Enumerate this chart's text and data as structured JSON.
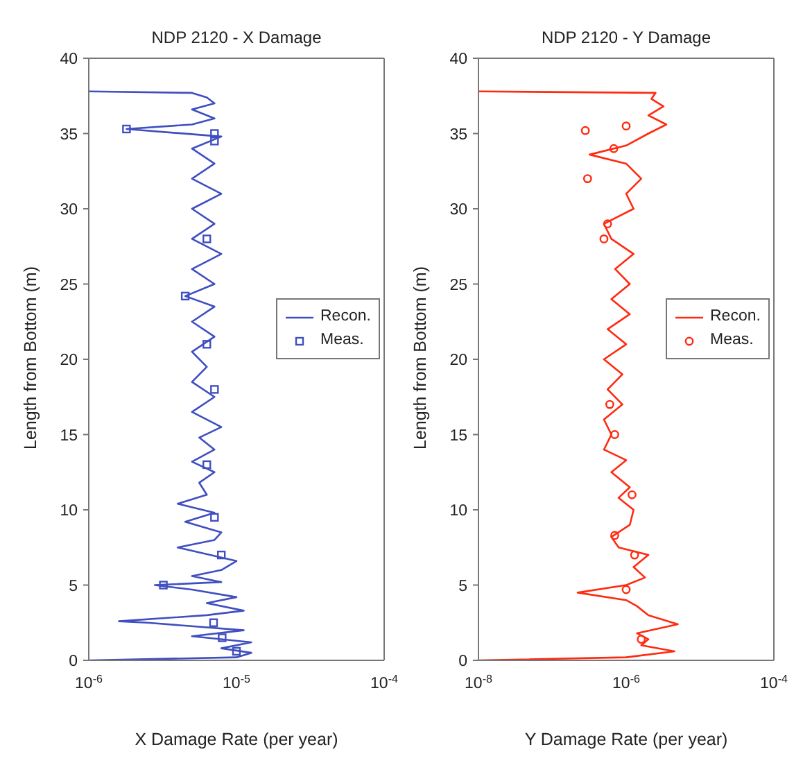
{
  "chart_data": [
    {
      "type": "line",
      "title": "NDP 2120 - X Damage",
      "xlabel": "X Damage Rate (per year)",
      "ylabel": "Length from Bottom (m)",
      "log": "x",
      "xlim": [
        1e-06,
        0.0001
      ],
      "xticks": [
        {
          "value": 1e-06,
          "label": "10$^{-6}$"
        },
        {
          "value": 1e-05,
          "label": "10$^{-5}$"
        },
        {
          "value": 0.0001,
          "label": "10$^{-4}$"
        }
      ],
      "ylim": [
        0,
        40
      ],
      "yticks": [
        0,
        5,
        10,
        15,
        20,
        25,
        30,
        35,
        40
      ],
      "legend": "right",
      "series": [
        {
          "name": "Recon.",
          "marker": "none",
          "color": "#3f4fc0",
          "x": [
            1e-06,
            1e-05,
            1.26e-05,
            7.9e-06,
            1.26e-05,
            5e-06,
            1.12e-05,
            2.5e-06,
            1.6e-06,
            6.3e-06,
            1.12e-05,
            6.3e-06,
            1e-05,
            5e-06,
            2.8e-06,
            7.9e-06,
            5e-06,
            7.9e-06,
            1e-05,
            4e-06,
            7.1e-06,
            7.9e-06,
            4.5e-06,
            7.1e-06,
            4e-06,
            6.3e-06,
            5.6e-06,
            7.1e-06,
            5e-06,
            7.1e-06,
            5.6e-06,
            7.9e-06,
            5e-06,
            7.1e-06,
            5e-06,
            6.3e-06,
            5e-06,
            7.1e-06,
            5e-06,
            7.1e-06,
            4.5e-06,
            7.1e-06,
            5e-06,
            7.9e-06,
            5e-06,
            7.1e-06,
            5e-06,
            7.9e-06,
            5e-06,
            7.1e-06,
            5e-06,
            7.9e-06,
            1.8e-06,
            5e-06,
            7.1e-06,
            5e-06,
            7.1e-06,
            6.3e-06,
            5e-06,
            1e-06
          ],
          "values": [
            0,
            0.2,
            0.5,
            0.8,
            1.2,
            1.6,
            2,
            2.5,
            2.6,
            3,
            3.3,
            3.8,
            4.2,
            4.7,
            5,
            5.2,
            5.6,
            6,
            6.6,
            7.5,
            8,
            8.5,
            9.2,
            9.8,
            10.4,
            11,
            11.8,
            12.5,
            13.2,
            14,
            14.8,
            15.5,
            16.5,
            17.5,
            18.5,
            19.5,
            20.5,
            21.5,
            22.5,
            23.5,
            24.2,
            25,
            26,
            27,
            28,
            29,
            30,
            31,
            32,
            33,
            34,
            34.8,
            35.3,
            35.6,
            36,
            36.6,
            37,
            37.4,
            37.7,
            37.8
          ]
        },
        {
          "name": "Meas.",
          "type": "scatter",
          "marker": "square",
          "color": "#3f4fc0",
          "x": [
            1.8e-06,
            7.1e-06,
            7.1e-06,
            6.3e-06,
            4.5e-06,
            6.3e-06,
            7.1e-06,
            6.3e-06,
            7.1e-06,
            7.9e-06,
            3.2e-06,
            7e-06,
            8e-06,
            1e-05
          ],
          "values": [
            35.3,
            35,
            34.5,
            28,
            24.2,
            21,
            18,
            13,
            9.5,
            7,
            5,
            2.5,
            1.5,
            0.6
          ]
        }
      ]
    },
    {
      "type": "line",
      "title": "NDP 2120 - Y Damage",
      "xlabel": "Y Damage Rate (per year)",
      "ylabel": "Length from Bottom (m)",
      "log": "x",
      "xlim": [
        1e-08,
        0.0001
      ],
      "xticks": [
        {
          "value": 1e-08,
          "label": "10$^{-8}$"
        },
        {
          "value": 1e-06,
          "label": "10$^{-6}$"
        },
        {
          "value": 0.0001,
          "label": "10$^{-4}$"
        }
      ],
      "ylim": [
        0,
        40
      ],
      "yticks": [
        0,
        5,
        10,
        15,
        20,
        25,
        30,
        35,
        40
      ],
      "legend": "right",
      "series": [
        {
          "name": "Recon.",
          "marker": "none",
          "color": "#ff2a10",
          "x": [
            1e-08,
            1e-06,
            4.5e-06,
            1.6e-06,
            2e-06,
            1.4e-06,
            5e-06,
            2e-06,
            1.4e-06,
            1e-06,
            2.2e-07,
            1e-06,
            1.8e-06,
            1.26e-06,
            2e-06,
            7.9e-07,
            6.3e-07,
            1.12e-06,
            1.26e-06,
            7.9e-07,
            1.12e-06,
            6.3e-07,
            1e-06,
            5e-07,
            6.3e-07,
            5e-07,
            8.9e-07,
            5.6e-07,
            8.9e-07,
            5e-07,
            1e-06,
            5.6e-07,
            1.12e-06,
            6.3e-07,
            1.12e-06,
            7.1e-07,
            1.26e-06,
            6.3e-07,
            5e-07,
            1.26e-06,
            1e-06,
            1.6e-06,
            1e-06,
            3.2e-07,
            1e-06,
            2e-06,
            3.5e-06,
            2e-06,
            3.2e-06,
            2.2e-06,
            2.5e-06,
            1e-08
          ],
          "values": [
            0,
            0.2,
            0.6,
            1,
            1.4,
            1.8,
            2.4,
            3,
            3.6,
            4,
            4.5,
            5,
            5.5,
            6.2,
            7,
            7.5,
            8.2,
            9,
            10,
            10.8,
            11.5,
            12.5,
            13.3,
            14,
            15,
            16,
            17,
            18,
            19,
            20,
            21,
            22,
            23,
            24,
            25,
            26,
            27,
            28,
            29,
            30,
            31,
            32,
            33,
            33.6,
            34.2,
            35,
            35.6,
            36.2,
            36.8,
            37.3,
            37.7,
            37.8
          ]
        },
        {
          "name": "Meas.",
          "type": "scatter",
          "marker": "circle",
          "color": "#ff2a10",
          "x": [
            2.8e-07,
            3e-07,
            6.8e-07,
            1e-06,
            5.6e-07,
            5e-07,
            6e-07,
            7e-07,
            1.2e-06,
            7e-07,
            1.3e-06,
            1e-06,
            1.6e-06
          ],
          "values": [
            35.2,
            32,
            34,
            35.5,
            29,
            28,
            17,
            15,
            11,
            8.3,
            7,
            4.7,
            1.4
          ]
        }
      ]
    }
  ]
}
